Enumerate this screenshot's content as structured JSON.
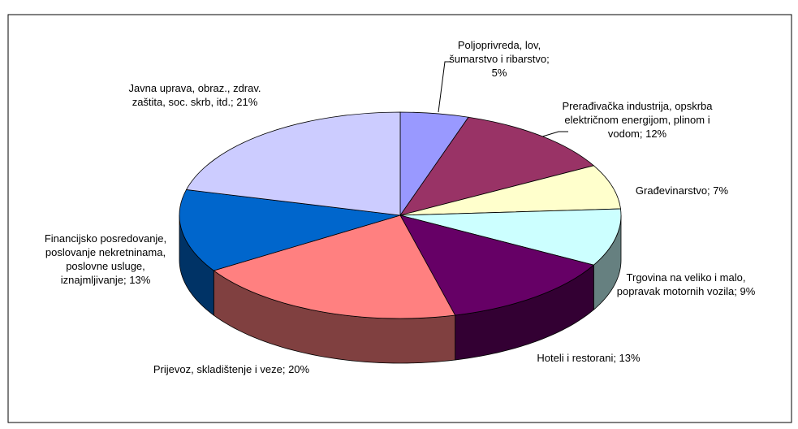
{
  "chart_data": {
    "type": "pie",
    "values": [
      5,
      12,
      7,
      9,
      13,
      20,
      13,
      21
    ],
    "value_labels": [
      "Poljoprivreda, lov, šumarstvo i ribarstvo; 5%",
      "Prerađivačka industrija, opskrba električnom energijom, plinom i vodom; 12%",
      "Građevinarstvo; 7%",
      "Trgovina na veliko i malo, popravak motornih vozila; 9%",
      "Hoteli i restorani; 13%",
      "Prijevoz, skladištenje i veze; 20%",
      "Financijsko posredovanje, poslovanje nekretninama, poslovne usluge, iznajmljivanje; 13%",
      "Javna uprava, obraz., zdrav. zaštita, soc. skrb, itd.; 21%"
    ],
    "colors": [
      "#9999ff",
      "#993366",
      "#ffffcc",
      "#ccffff",
      "#660066",
      "#ff8080",
      "#0066cc",
      "#ccccff"
    ]
  }
}
